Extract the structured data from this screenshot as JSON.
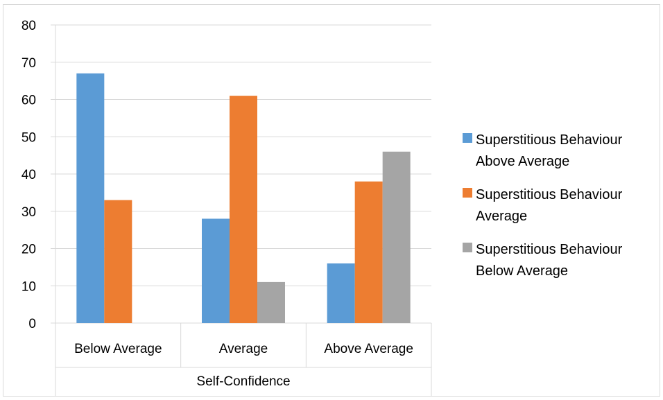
{
  "chart_data": {
    "type": "bar",
    "categories": [
      "Below Average",
      "Average",
      "Above Average"
    ],
    "group_label": "Self-Confidence",
    "series": [
      {
        "name": "Superstitious Behaviour Above Average",
        "legend_lines": [
          "Superstitious Behaviour",
          "Above Average"
        ],
        "color": "#5b9bd5",
        "values": [
          67,
          28,
          16
        ]
      },
      {
        "name": "Superstitious Behaviour Average",
        "legend_lines": [
          "Superstitious Behaviour",
          "Average"
        ],
        "color": "#ed7d31",
        "values": [
          33,
          61,
          38
        ]
      },
      {
        "name": "Superstitious Behaviour Below Average",
        "legend_lines": [
          "Superstitious Behaviour",
          "Below Average"
        ],
        "color": "#a5a5a5",
        "values": [
          0,
          11,
          46
        ]
      }
    ],
    "yticks": [
      "0",
      "10",
      "20",
      "30",
      "40",
      "50",
      "60",
      "70",
      "80"
    ],
    "ylim": [
      0,
      80
    ],
    "grid": true,
    "legend_position": "right"
  }
}
